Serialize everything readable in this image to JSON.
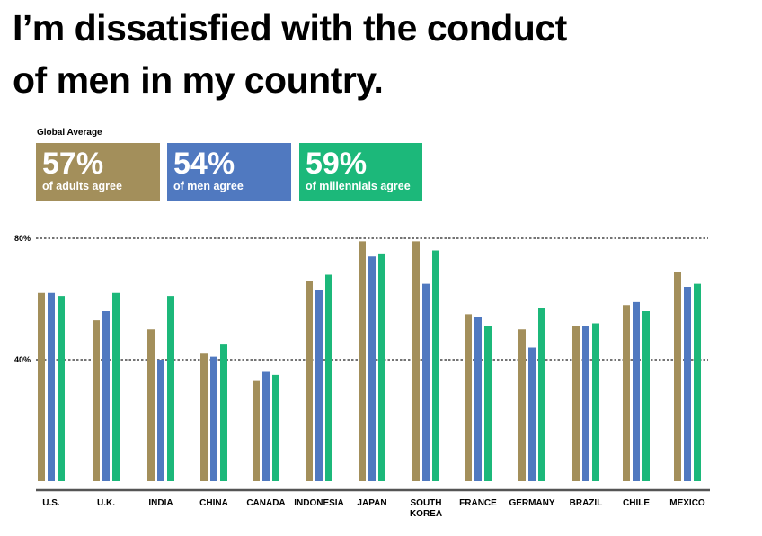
{
  "title_lines": [
    "I’m dissatisfied with the conduct",
    "of men in my country."
  ],
  "global_average": {
    "label": "Global Average",
    "cards": [
      {
        "value": "57%",
        "label": "of adults agree",
        "color": "#a38f5b"
      },
      {
        "value": "54%",
        "label": "of men agree",
        "color": "#5079c0"
      },
      {
        "value": "59%",
        "label": "of millennials agree",
        "color": "#1cb87a"
      }
    ]
  },
  "chart_data": {
    "type": "bar",
    "title": "I’m dissatisfied with the conduct of men in my country.",
    "categories": [
      "U.S.",
      "U.K.",
      "INDIA",
      "CHINA",
      "CANADA",
      "INDONESIA",
      "JAPAN",
      "SOUTH KOREA",
      "FRANCE",
      "GERMANY",
      "BRAZIL",
      "CHILE",
      "MEXICO"
    ],
    "series": [
      {
        "name": "Adults",
        "color": "#a38f5b",
        "values": [
          62,
          53,
          50,
          42,
          33,
          66,
          79,
          79,
          55,
          50,
          51,
          58,
          69
        ]
      },
      {
        "name": "Men",
        "color": "#5079c0",
        "values": [
          62,
          56,
          40,
          41,
          36,
          63,
          74,
          65,
          54,
          44,
          51,
          59,
          64
        ]
      },
      {
        "name": "Millennials",
        "color": "#1cb87a",
        "values": [
          61,
          62,
          61,
          45,
          35,
          68,
          75,
          76,
          51,
          57,
          52,
          56,
          65
        ]
      }
    ],
    "yticks": [
      {
        "value": 40,
        "label": "40%"
      },
      {
        "value": 80,
        "label": "80%"
      }
    ],
    "ylim": [
      0,
      80
    ],
    "grid": true,
    "xlabel": "",
    "ylabel": ""
  }
}
